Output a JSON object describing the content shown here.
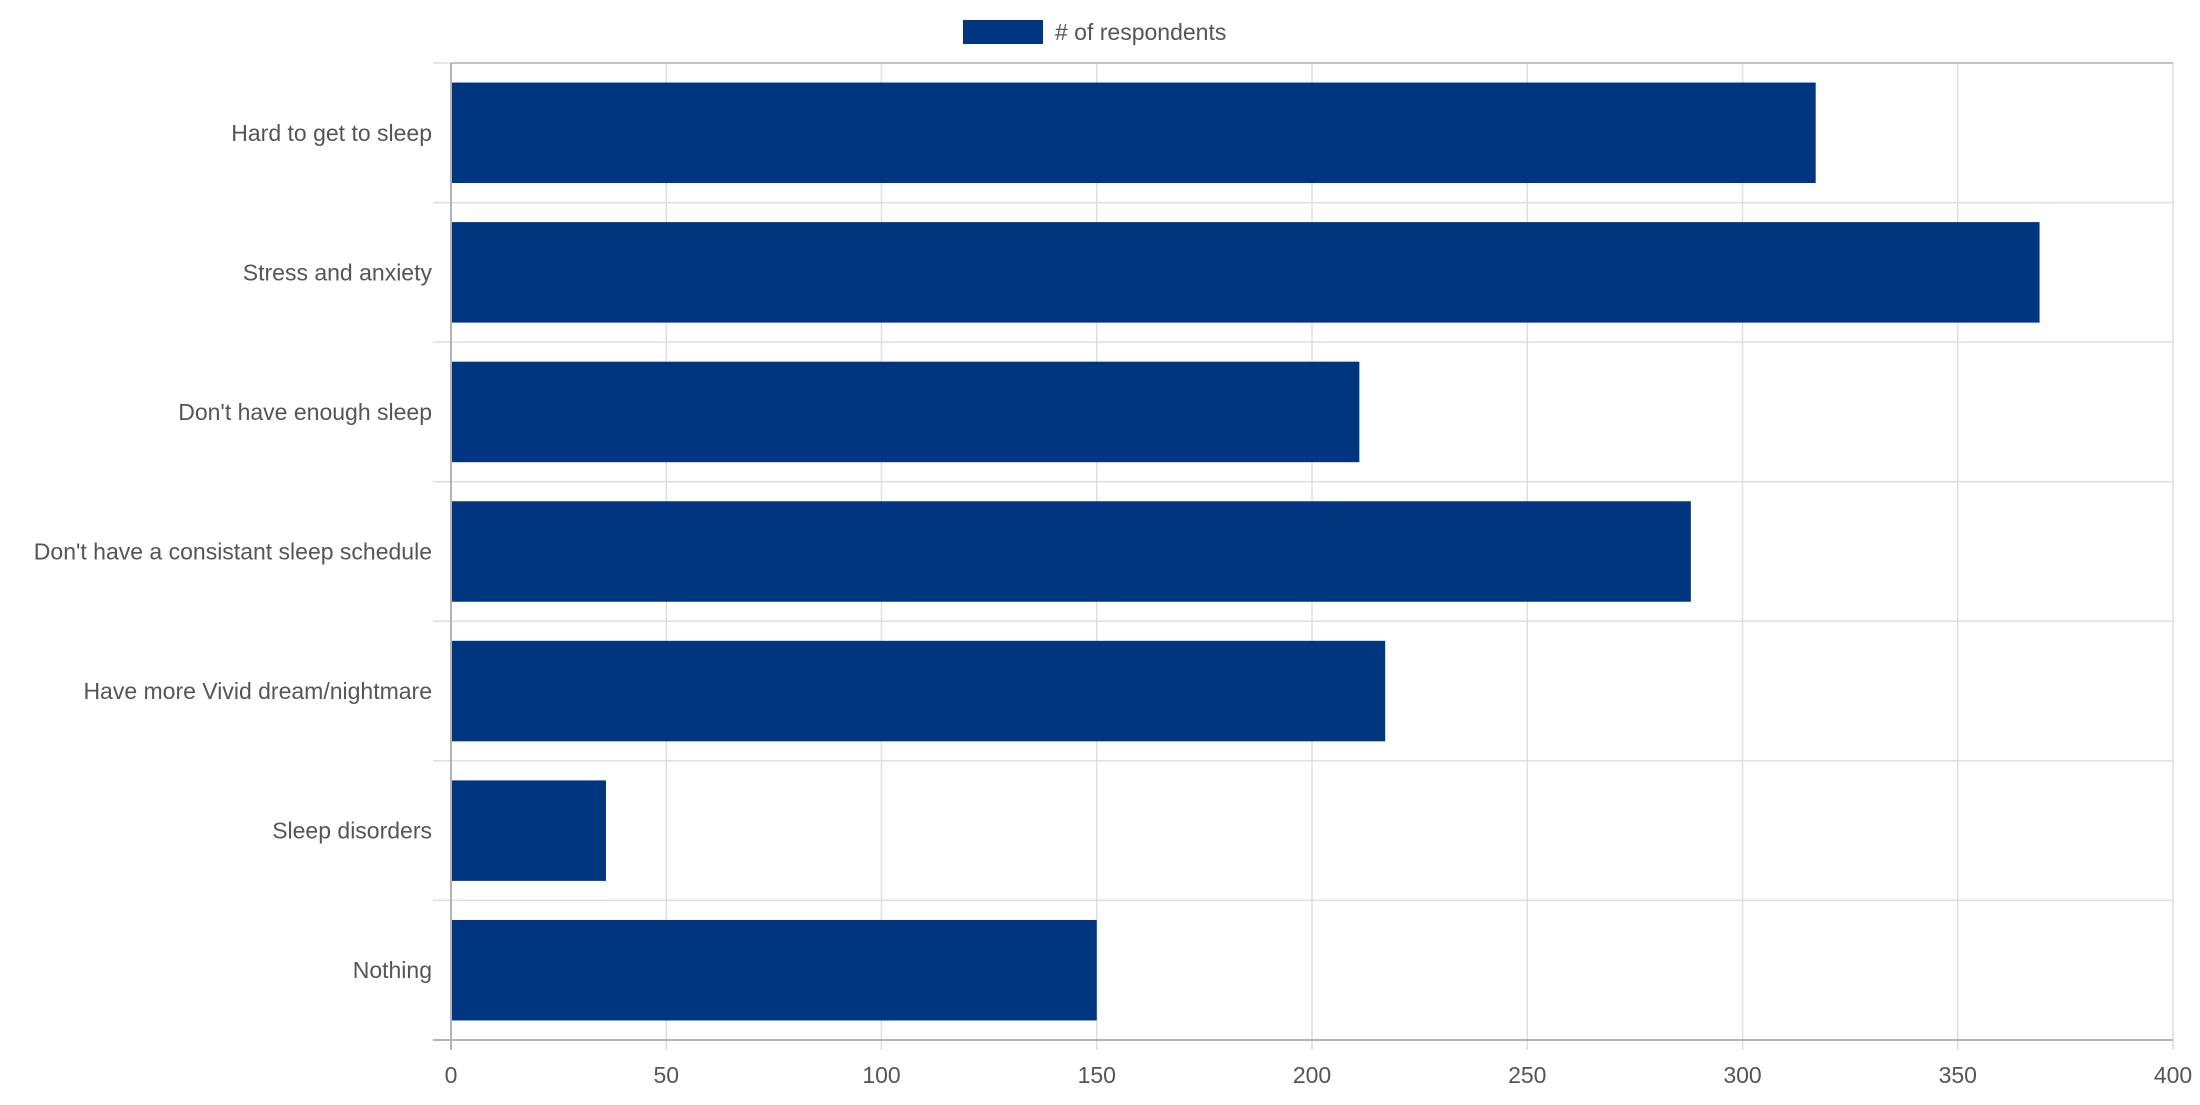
{
  "chart_data": {
    "type": "bar",
    "orientation": "horizontal",
    "title": "",
    "xlabel": "",
    "ylabel": "",
    "categories": [
      "Hard to get to sleep",
      "Stress and anxiety",
      "Don't have enough sleep",
      "Don't have a consistant sleep schedule",
      "Have more Vivid dream/nightmare",
      "Sleep disorders",
      "Nothing"
    ],
    "series": [
      {
        "name": "# of respondents",
        "values": [
          317,
          369,
          211,
          288,
          217,
          36,
          150
        ]
      }
    ],
    "xlim": [
      0,
      400
    ],
    "xticks": [
      0,
      50,
      100,
      150,
      200,
      250,
      300,
      350,
      400
    ],
    "grid": true,
    "legend_position": "top-center",
    "colors": {
      "bar": "#003580",
      "grid": "#dcdde6",
      "axis": "#b3b3b3",
      "text": "#555555"
    }
  }
}
